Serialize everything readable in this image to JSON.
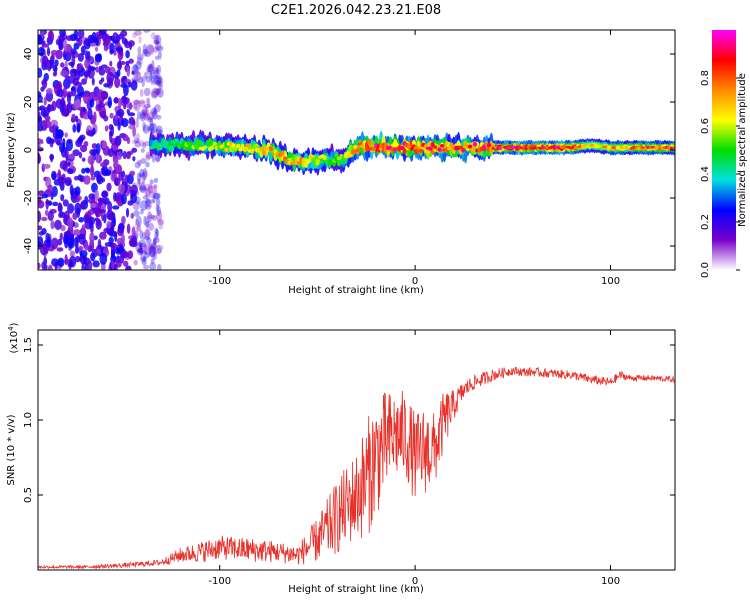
{
  "figure": {
    "title": "C2E1.2026.042.23.21.E08"
  },
  "chart_data": [
    {
      "type": "heatmap",
      "title": "C2E1.2026.042.23.21.E08",
      "xlabel": "Height of straight line (km)",
      "ylabel": "Frequency (Hz)",
      "xlim": [
        -193,
        133
      ],
      "ylim": [
        -50,
        50
      ],
      "x_ticks": [
        -100,
        0,
        100
      ],
      "y_ticks": [
        -40,
        -20,
        0,
        20,
        40
      ],
      "grid": false,
      "colorbar": {
        "label": "Normalized spectral amplitude",
        "range": [
          0,
          1
        ],
        "ticks": [
          "0.0",
          "0.2",
          "0.4",
          "0.6",
          "0.8"
        ],
        "colormap": [
          "#ffffff",
          "#7a00cc",
          "#0000ff",
          "#00e0e0",
          "#00dd00",
          "#ffff00",
          "#ff8800",
          "#ff0000",
          "#ff00ff"
        ]
      },
      "signal_band": {
        "description_points_km": [
          -135,
          -110,
          -90,
          -75,
          -62,
          -50,
          -38,
          -30,
          -20,
          0,
          20,
          50,
          80,
          90,
          100,
          133
        ],
        "center_freq_hz": [
          2,
          2,
          1,
          0,
          -5,
          -4,
          -4,
          1,
          2,
          1,
          1,
          1,
          1,
          2,
          1,
          1
        ],
        "peak_amplitude": [
          0.5,
          0.6,
          0.7,
          0.75,
          0.8,
          0.7,
          0.6,
          0.9,
          1.0,
          0.95,
          0.9,
          1.0,
          1.0,
          0.7,
          0.8,
          0.95
        ]
      },
      "noise_region_km": [
        -193,
        -135
      ]
    },
    {
      "type": "line",
      "xlabel": "Height of straight line (km)",
      "ylabel": "SNR (10 * v/v)",
      "y_multiplier_label": "(x10",
      "y_multiplier_exp": "4",
      "y_multiplier_close": ")",
      "xlim": [
        -193,
        133
      ],
      "ylim": [
        0,
        1.6
      ],
      "x_ticks": [
        -100,
        0,
        100
      ],
      "y_ticks": [
        0.5,
        1.0,
        1.5
      ],
      "y_tick_labels": [
        "0.5",
        "1.0",
        "1.5"
      ],
      "x_tick_labels": [
        "-100",
        "0",
        "100"
      ],
      "grid": false,
      "series": [
        {
          "name": "SNR",
          "color": "#e8302a",
          "x": [
            -193,
            -170,
            -150,
            -130,
            -120,
            -110,
            -100,
            -90,
            -80,
            -70,
            -60,
            -50,
            -40,
            -30,
            -25,
            -20,
            -15,
            -10,
            -5,
            0,
            5,
            10,
            15,
            20,
            25,
            30,
            40,
            50,
            55,
            60,
            70,
            80,
            90,
            100,
            105,
            110,
            120,
            133
          ],
          "values": [
            0.02,
            0.02,
            0.03,
            0.05,
            0.1,
            0.12,
            0.15,
            0.14,
            0.13,
            0.12,
            0.1,
            0.2,
            0.35,
            0.5,
            0.6,
            0.75,
            0.85,
            0.9,
            0.9,
            0.75,
            0.8,
            0.8,
            1.0,
            1.1,
            1.2,
            1.25,
            1.3,
            1.33,
            1.32,
            1.32,
            1.31,
            1.3,
            1.27,
            1.25,
            1.3,
            1.28,
            1.28,
            1.27
          ],
          "noise_amplitude": [
            0.01,
            0.01,
            0.015,
            0.02,
            0.05,
            0.07,
            0.08,
            0.08,
            0.08,
            0.07,
            0.07,
            0.15,
            0.25,
            0.3,
            0.4,
            0.4,
            0.35,
            0.3,
            0.3,
            0.3,
            0.3,
            0.25,
            0.2,
            0.1,
            0.06,
            0.05,
            0.04,
            0.03,
            0.03,
            0.03,
            0.03,
            0.03,
            0.03,
            0.03,
            0.03,
            0.02,
            0.02,
            0.02
          ]
        }
      ]
    }
  ]
}
